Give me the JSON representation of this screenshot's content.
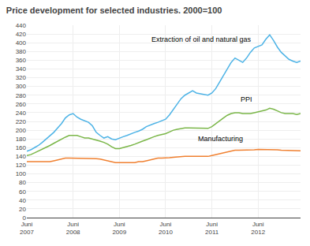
{
  "chart_data": {
    "type": "line",
    "title": "Price development for selected industries. 2000=100",
    "categories": [
      "Juni\n2007",
      null,
      null,
      null,
      null,
      null,
      null,
      null,
      null,
      null,
      null,
      null,
      "Juni\n2008",
      null,
      null,
      null,
      null,
      null,
      null,
      null,
      null,
      null,
      null,
      null,
      "Juni\n2009",
      null,
      null,
      null,
      null,
      null,
      null,
      null,
      null,
      null,
      null,
      null,
      "Juni\n2010",
      null,
      null,
      null,
      null,
      null,
      null,
      null,
      null,
      null,
      null,
      null,
      "Juni\n2011",
      null,
      null,
      null,
      null,
      null,
      null,
      null,
      null,
      null,
      null,
      null,
      "Juni\n2012",
      null,
      null,
      null,
      null,
      null,
      null,
      null,
      null,
      null,
      null,
      null
    ],
    "series": [
      {
        "color": "#4db3e6",
        "values": [
          152,
          155,
          160,
          165,
          172,
          180,
          188,
          195,
          205,
          215,
          228,
          235,
          238,
          230,
          225,
          222,
          218,
          210,
          195,
          188,
          182,
          185,
          180,
          178,
          182,
          185,
          188,
          192,
          195,
          198,
          202,
          208,
          212,
          215,
          218,
          222,
          225,
          235,
          248,
          260,
          272,
          280,
          285,
          290,
          285,
          283,
          282,
          280,
          285,
          295,
          310,
          325,
          340,
          355,
          365,
          360,
          355,
          365,
          378,
          388,
          392,
          395,
          408,
          418,
          405,
          390,
          378,
          370,
          362,
          358,
          355,
          358
        ]
      },
      {
        "color": "#7ab648",
        "values": [
          142,
          144,
          148,
          152,
          156,
          160,
          165,
          170,
          175,
          180,
          184,
          188,
          188,
          188,
          185,
          182,
          182,
          180,
          178,
          175,
          172,
          168,
          162,
          158,
          158,
          160,
          162,
          165,
          168,
          172,
          175,
          178,
          182,
          185,
          188,
          190,
          192,
          196,
          200,
          202,
          204,
          205,
          205,
          205,
          205,
          205,
          204,
          204,
          208,
          215,
          222,
          228,
          234,
          238,
          240,
          240,
          238,
          238,
          238,
          240,
          242,
          244,
          246,
          250,
          248,
          244,
          240,
          238,
          238,
          238,
          236,
          238
        ]
      },
      {
        "color": "#f08030",
        "values": [
          128,
          128,
          128,
          128,
          128,
          128,
          128,
          130,
          132,
          134,
          136,
          136,
          136,
          136,
          136,
          136,
          136,
          136,
          135,
          134,
          132,
          130,
          128,
          126,
          126,
          126,
          126,
          126,
          126,
          128,
          128,
          130,
          132,
          134,
          136,
          136,
          136,
          137,
          138,
          139,
          140,
          140,
          140,
          140,
          140,
          140,
          140,
          140,
          142,
          144,
          146,
          148,
          150,
          152,
          154,
          154,
          154,
          155,
          155,
          155,
          156,
          156,
          156,
          156,
          155,
          155,
          154,
          154,
          153,
          153,
          153,
          153
        ]
      }
    ],
    "annotations": [
      {
        "text": "Extraction of oil and natural gas",
        "x": 32,
        "y": 395
      },
      {
        "text": "PPI",
        "x": 55,
        "y": 258
      },
      {
        "text": "Manufacturing",
        "x": 44,
        "y": 168
      }
    ],
    "ylim": [
      0,
      440
    ],
    "yticks": [
      0,
      20,
      40,
      60,
      80,
      100,
      120,
      140,
      160,
      180,
      200,
      220,
      240,
      260,
      280,
      300,
      320,
      340,
      360,
      380,
      400,
      420,
      440
    ],
    "grid": true
  }
}
